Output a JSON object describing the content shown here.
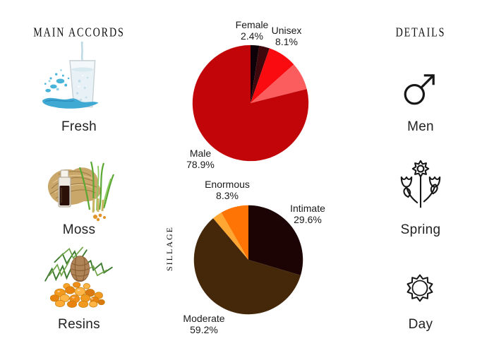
{
  "left_panel": {
    "header": "MAIN ACCORDS",
    "items": [
      {
        "label": "Fresh",
        "icon": "water-splash-glass-photo"
      },
      {
        "label": "Moss",
        "icon": "vetiver-roots-oil-bottle-photo"
      },
      {
        "label": "Resins",
        "icon": "pine-cone-amber-resin-photo"
      }
    ]
  },
  "right_panel": {
    "header": "DETAILS",
    "items": [
      {
        "label": "Men",
        "icon": "mars-male-symbol-icon"
      },
      {
        "label": "Spring",
        "icon": "spring-flowers-icon"
      },
      {
        "label": "Day",
        "icon": "sun-icon"
      }
    ]
  },
  "chart_data": [
    {
      "type": "pie",
      "name": "gender",
      "title": "",
      "start": "12-oclock-clockwise",
      "slices": [
        {
          "label": "Female",
          "pct_label": "2.4%",
          "value": 2.4,
          "color": "#0e0208"
        },
        {
          "label": "",
          "pct_label": "",
          "value": 2.9,
          "color": "#3f080c"
        },
        {
          "label": "Unisex",
          "pct_label": "8.1%",
          "value": 8.1,
          "color": "#f90b10"
        },
        {
          "label": "",
          "pct_label": "",
          "value": 7.7,
          "color": "#fb5d5e"
        },
        {
          "label": "Male",
          "pct_label": "78.9%",
          "value": 78.9,
          "color": "#c20509"
        }
      ]
    },
    {
      "type": "pie",
      "name": "sillage",
      "axis_label": "SILLAGE",
      "start": "12-oclock-clockwise",
      "slices": [
        {
          "label": "Intimate",
          "pct_label": "29.6%",
          "value": 29.6,
          "color": "#1c0405"
        },
        {
          "label": "Moderate",
          "pct_label": "59.2%",
          "value": 59.2,
          "color": "#45270a"
        },
        {
          "label": "",
          "pct_label": "",
          "value": 2.9,
          "color": "#ffa733"
        },
        {
          "label": "Enormous",
          "pct_label": "8.3%",
          "value": 8.3,
          "color": "#ff7505"
        }
      ]
    }
  ]
}
